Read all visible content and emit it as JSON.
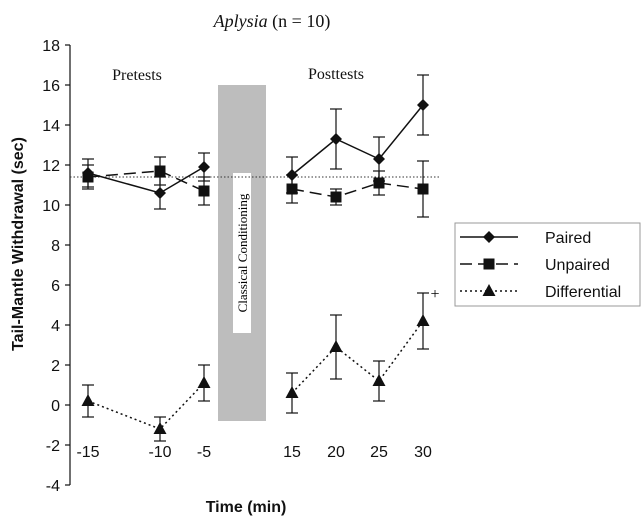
{
  "chart_data": {
    "type": "line",
    "title_italic": "Aplysia",
    "title_rest": " (n = 10)",
    "xlabel": "Time (min)",
    "ylabel": "Tail-Mantle Withdrawal (sec)",
    "ylim": [
      -4,
      18
    ],
    "yticks": [
      -4,
      -2,
      0,
      2,
      4,
      6,
      8,
      10,
      12,
      14,
      16,
      18
    ],
    "categories": [
      "-15",
      "-10",
      "-5",
      "15",
      "20",
      "25",
      "30"
    ],
    "series": [
      {
        "name": "Paired",
        "marker": "diamond",
        "dash": "solid",
        "values": [
          11.6,
          10.6,
          11.9,
          11.5,
          13.3,
          12.3,
          15.0
        ],
        "err": [
          0.7,
          0.8,
          0.7,
          0.9,
          1.5,
          1.1,
          1.5
        ]
      },
      {
        "name": "Unpaired",
        "marker": "square",
        "dash": "long-dash",
        "values": [
          11.4,
          11.7,
          10.7,
          10.8,
          10.4,
          11.1,
          10.8
        ],
        "err": [
          0.6,
          0.7,
          0.7,
          0.7,
          0.4,
          0.6,
          1.4
        ]
      },
      {
        "name": "Differential",
        "marker": "triangle",
        "dash": "dotted",
        "values": [
          0.2,
          -1.2,
          1.1,
          0.6,
          2.9,
          1.2,
          4.2
        ],
        "err": [
          0.8,
          0.6,
          0.9,
          1.0,
          1.6,
          1.0,
          1.4
        ]
      }
    ],
    "reference_line": 11.4,
    "labels": {
      "pretests": "Pretests",
      "posttests": "Posttests",
      "conditioning": "Classical Conditioning",
      "significance": "+"
    },
    "legend_position": "right"
  }
}
